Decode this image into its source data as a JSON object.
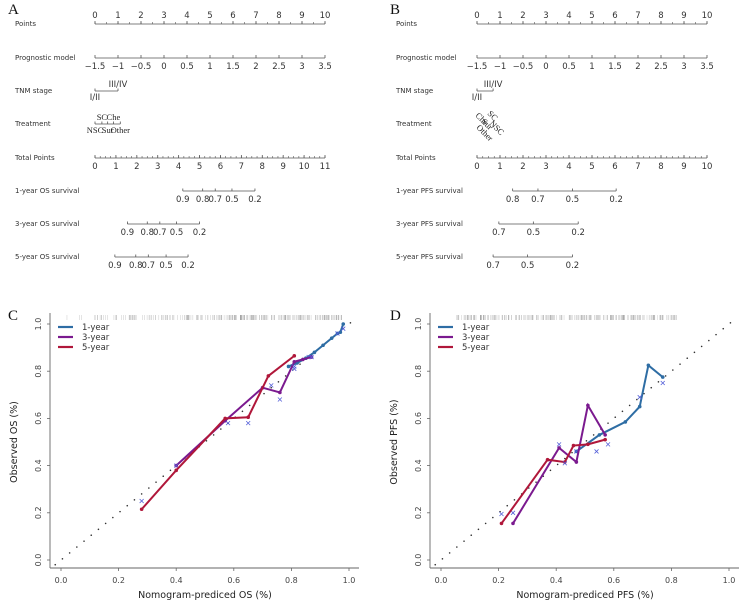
{
  "chart_data": [
    {
      "type": "nomogram",
      "panel": "A",
      "rows": [
        {
          "label": "Points",
          "kind": "axis",
          "min": 0,
          "max": 10,
          "ticks": [
            0,
            1,
            2,
            3,
            4,
            5,
            6,
            7,
            8,
            9,
            10
          ],
          "labels_above": true,
          "minor_step": 0.5
        },
        {
          "label": "Prognostic model",
          "kind": "axis",
          "min": -1.5,
          "max": 3.5,
          "points_min": 0,
          "points_max": 10,
          "ticks": [
            -1.5,
            -1,
            -0.5,
            0,
            0.5,
            1,
            1.5,
            2,
            2.5,
            3,
            3.5
          ],
          "labels_above": false
        },
        {
          "label": "TNM stage",
          "kind": "categorical",
          "items": [
            {
              "label": "I/II",
              "points": 0,
              "pos": "below"
            },
            {
              "label": "III/IV",
              "points": 1.0,
              "pos": "above"
            }
          ]
        },
        {
          "label": "Treatment",
          "kind": "categorical",
          "items": [
            {
              "label": "NSC",
              "points": 0,
              "pos": "below"
            },
            {
              "label": "SC",
              "points": 0.3,
              "pos": "above"
            },
            {
              "label": "Sur",
              "points": 0.55,
              "pos": "below"
            },
            {
              "label": "Che",
              "points": 0.8,
              "pos": "above"
            },
            {
              "label": "Other",
              "points": 1.1,
              "pos": "below"
            }
          ]
        },
        {
          "label": "Total Points",
          "kind": "axis",
          "min": 0,
          "max": 11,
          "ticks": [
            0,
            1,
            2,
            3,
            4,
            5,
            6,
            7,
            8,
            9,
            10,
            11
          ],
          "labels_above": false,
          "minor_step": 0.25
        },
        {
          "label": "1-year OS survival",
          "kind": "survival",
          "items": [
            {
              "label": "0.9",
              "tp": 4.2
            },
            {
              "label": "0.8",
              "tp": 5.15
            },
            {
              "label": "0.7",
              "tp": 5.75
            },
            {
              "label": "0.5",
              "tp": 6.55
            },
            {
              "label": "0.2",
              "tp": 7.65
            }
          ]
        },
        {
          "label": "3-year OS survival",
          "kind": "survival",
          "items": [
            {
              "label": "0.9",
              "tp": 1.55
            },
            {
              "label": "0.8",
              "tp": 2.5
            },
            {
              "label": "0.7",
              "tp": 3.1
            },
            {
              "label": "0.5",
              "tp": 3.9
            },
            {
              "label": "0.2",
              "tp": 5.0
            }
          ]
        },
        {
          "label": "5-year OS survival",
          "kind": "survival",
          "items": [
            {
              "label": "0.9",
              "tp": 0.95
            },
            {
              "label": "0.8",
              "tp": 1.95
            },
            {
              "label": "0.7",
              "tp": 2.55
            },
            {
              "label": "0.5",
              "tp": 3.4
            },
            {
              "label": "0.2",
              "tp": 4.45
            }
          ]
        }
      ]
    },
    {
      "type": "nomogram",
      "panel": "B",
      "rows": [
        {
          "label": "Points",
          "kind": "axis",
          "min": 0,
          "max": 10,
          "ticks": [
            0,
            1,
            2,
            3,
            4,
            5,
            6,
            7,
            8,
            9,
            10
          ],
          "labels_above": true,
          "minor_step": 0.5
        },
        {
          "label": "Prognostic model",
          "kind": "axis",
          "min": -1.5,
          "max": 3.5,
          "points_min": 0,
          "points_max": 10,
          "ticks": [
            -1.5,
            -1,
            -0.5,
            0,
            0.5,
            1,
            1.5,
            2,
            2.5,
            3,
            3.5
          ],
          "labels_above": false
        },
        {
          "label": "TNM stage",
          "kind": "categorical",
          "items": [
            {
              "label": "I/II",
              "points": 0,
              "pos": "below"
            },
            {
              "label": "III/IV",
              "points": 0.7,
              "pos": "above"
            }
          ]
        },
        {
          "label": "Treatment",
          "kind": "rotated",
          "items": [
            {
              "label": "Che",
              "points": 0.05
            },
            {
              "label": "SC",
              "points": 0.35
            },
            {
              "label": "Sur",
              "points": 0.25
            },
            {
              "label": "NSC",
              "points": 0.45
            },
            {
              "label": "Other",
              "points": 0.1
            }
          ]
        },
        {
          "label": "Total Points",
          "kind": "axis",
          "min": 0,
          "max": 10,
          "ticks": [
            0,
            1,
            2,
            3,
            4,
            5,
            6,
            7,
            8,
            9,
            10
          ],
          "labels_above": false,
          "minor_step": 0.25
        },
        {
          "label": "1-year PFS survival",
          "kind": "survival",
          "items": [
            {
              "label": "0.8",
              "tp": 1.55
            },
            {
              "label": "0.7",
              "tp": 2.65
            },
            {
              "label": "0.5",
              "tp": 4.15
            },
            {
              "label": "0.2",
              "tp": 6.05
            }
          ]
        },
        {
          "label": "3-year PFS survival",
          "kind": "survival",
          "items": [
            {
              "label": "0.7",
              "tp": 0.95
            },
            {
              "label": "0.5",
              "tp": 2.45
            },
            {
              "label": "0.2",
              "tp": 4.4
            }
          ]
        },
        {
          "label": "5-year PFS survival",
          "kind": "survival",
          "items": [
            {
              "label": "0.7",
              "tp": 0.7
            },
            {
              "label": "0.5",
              "tp": 2.2
            },
            {
              "label": "0.2",
              "tp": 4.15
            }
          ]
        }
      ]
    },
    {
      "type": "line",
      "panel": "C",
      "xlabel": "Nomogram-prediced OS (%)",
      "ylabel": "Observed OS (%)",
      "xlim": [
        0,
        1
      ],
      "ylim": [
        0,
        1
      ],
      "xticks": [
        0.0,
        0.2,
        0.4,
        0.6,
        0.8,
        1.0
      ],
      "yticks": [
        0.0,
        0.2,
        0.4,
        0.6,
        0.8,
        1.0
      ],
      "tick_labels": [
        "0.0",
        "0.2",
        "0.4",
        "0.6",
        "0.8",
        "1.0"
      ],
      "legend_position": "top-left",
      "reference_line": "diagonal dotted",
      "series": [
        {
          "name": "1-year",
          "color": "#2e6da4",
          "x": [
            0.79,
            0.82,
            0.85,
            0.88,
            0.91,
            0.94,
            0.96,
            0.97,
            0.98
          ],
          "y": [
            0.82,
            0.835,
            0.855,
            0.88,
            0.91,
            0.94,
            0.96,
            0.965,
            1.0
          ],
          "xmarks": [
            [
              0.81,
              0.81
            ],
            [
              0.86,
              0.86
            ],
            [
              0.96,
              0.96
            ],
            [
              0.98,
              0.98
            ]
          ]
        },
        {
          "name": "3-year",
          "color": "#7b1a8f",
          "x": [
            0.4,
            0.57,
            0.7,
            0.76,
            0.81,
            0.84,
            0.87
          ],
          "y": [
            0.4,
            0.59,
            0.73,
            0.71,
            0.84,
            0.85,
            0.86
          ],
          "xmarks": [
            [
              0.4,
              0.4
            ],
            [
              0.58,
              0.58
            ],
            [
              0.76,
              0.68
            ],
            [
              0.81,
              0.82
            ],
            [
              0.87,
              0.86
            ]
          ]
        },
        {
          "name": "5-year",
          "color": "#b0173a",
          "x": [
            0.28,
            0.4,
            0.57,
            0.65,
            0.72,
            0.81
          ],
          "y": [
            0.215,
            0.38,
            0.6,
            0.605,
            0.78,
            0.865
          ],
          "xmarks": [
            [
              0.28,
              0.25
            ],
            [
              0.65,
              0.58
            ],
            [
              0.73,
              0.74
            ]
          ]
        }
      ],
      "rug_range": [
        0.0,
        0.98
      ]
    },
    {
      "type": "line",
      "panel": "D",
      "xlabel": "Nomogram-prediced PFS (%)",
      "ylabel": "Observed PFS (%)",
      "xlim": [
        0,
        1
      ],
      "ylim": [
        0,
        1
      ],
      "xticks": [
        0.0,
        0.2,
        0.4,
        0.6,
        0.8,
        1.0
      ],
      "yticks": [
        0.0,
        0.2,
        0.4,
        0.6,
        0.8,
        1.0
      ],
      "tick_labels": [
        "0.0",
        "0.2",
        "0.4",
        "0.6",
        "0.8",
        "1.0"
      ],
      "legend_position": "top-left",
      "reference_line": "diagonal dotted",
      "series": [
        {
          "name": "1-year",
          "color": "#2e6da4",
          "x": [
            0.47,
            0.55,
            0.64,
            0.69,
            0.72,
            0.77
          ],
          "y": [
            0.46,
            0.53,
            0.585,
            0.65,
            0.825,
            0.775
          ],
          "xmarks": [
            [
              0.47,
              0.46
            ],
            [
              0.54,
              0.46
            ],
            [
              0.69,
              0.69
            ],
            [
              0.77,
              0.75
            ]
          ]
        },
        {
          "name": "3-year",
          "color": "#7b1a8f",
          "x": [
            0.25,
            0.41,
            0.47,
            0.51,
            0.57
          ],
          "y": [
            0.155,
            0.475,
            0.415,
            0.655,
            0.53
          ],
          "xmarks": [
            [
              0.25,
              0.2
            ],
            [
              0.41,
              0.49
            ],
            [
              0.58,
              0.49
            ]
          ]
        },
        {
          "name": "5-year",
          "color": "#b0173a",
          "x": [
            0.21,
            0.37,
            0.43,
            0.46,
            0.51,
            0.57
          ],
          "y": [
            0.155,
            0.425,
            0.415,
            0.485,
            0.49,
            0.51
          ],
          "xmarks": [
            [
              0.21,
              0.195
            ],
            [
              0.43,
              0.41
            ]
          ]
        }
      ],
      "rug_range": [
        0.05,
        0.82
      ]
    }
  ],
  "panels": {
    "a": "A",
    "b": "B",
    "c": "C",
    "d": "D"
  }
}
